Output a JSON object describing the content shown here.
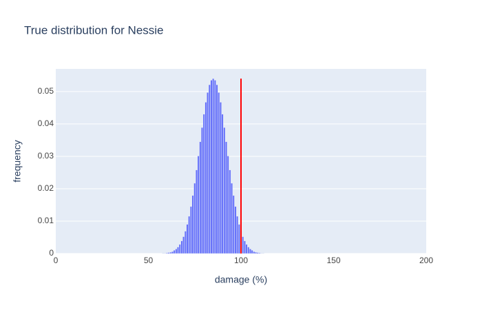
{
  "chart_data": {
    "type": "bar",
    "title": "True distribution for Nessie",
    "x_label": "damage (%)",
    "y_label": "frequency",
    "x": [
      58,
      59,
      60,
      61,
      62,
      63,
      64,
      65,
      66,
      67,
      68,
      69,
      70,
      71,
      72,
      73,
      74,
      75,
      76,
      77,
      78,
      79,
      80,
      81,
      82,
      83,
      84,
      85,
      86,
      87,
      88,
      89,
      90,
      91,
      92,
      93,
      94,
      95,
      96,
      97,
      98,
      99,
      100,
      101,
      102,
      103,
      104,
      105,
      106,
      107,
      108,
      109,
      110,
      111,
      112
    ],
    "values": [
      0.0001,
      0.0001,
      0.0002,
      0.0003,
      0.0004,
      0.0006,
      0.001,
      0.0014,
      0.002,
      0.0028,
      0.0039,
      0.0052,
      0.0069,
      0.009,
      0.0115,
      0.0145,
      0.0179,
      0.0217,
      0.0258,
      0.0301,
      0.0345,
      0.0389,
      0.043,
      0.0467,
      0.0497,
      0.0521,
      0.0535,
      0.054,
      0.0535,
      0.0521,
      0.0497,
      0.0467,
      0.043,
      0.0389,
      0.0345,
      0.0301,
      0.0258,
      0.0217,
      0.0179,
      0.0145,
      0.0115,
      0.009,
      0.0069,
      0.0052,
      0.0039,
      0.0028,
      0.002,
      0.0014,
      0.001,
      0.0006,
      0.0004,
      0.0003,
      0.0002,
      0.0001,
      0.0001
    ],
    "color": "#636efa",
    "reference_line": {
      "x": [
        100,
        100
      ],
      "y": [
        0,
        0.054
      ],
      "color": "#ff0000"
    },
    "xlim": [
      0,
      200
    ],
    "xticks": [
      0,
      50,
      100,
      150,
      200
    ],
    "ylim": [
      0,
      0.057
    ],
    "yticks": [
      0,
      0.01,
      0.02,
      0.03,
      0.04,
      0.05
    ],
    "grid": "y"
  }
}
